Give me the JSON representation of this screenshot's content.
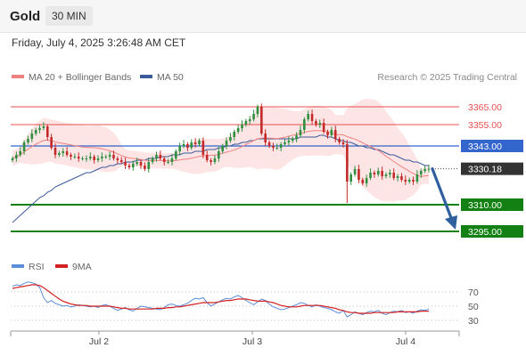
{
  "header": {
    "instrument": "Gold",
    "timeframe": "30 MIN",
    "datetime": "Friday, July 4, 2025 3:26:48 AM CET"
  },
  "colors": {
    "ma20": "#f08080",
    "bollinger_fill": "#fde0e0",
    "ma50": "#3a5a9c",
    "resistance": "#e85050",
    "pivot": "#3366cc",
    "support": "#128012",
    "candle_up": "#2f8f3f",
    "candle_down": "#c42a2a",
    "arrow": "#2f5f9f",
    "rsi": "#5b8fd9",
    "rsi_ma": "#d42020"
  },
  "chart_data": [
    {
      "type": "candlestick",
      "legend": [
        {
          "label": "MA 20 + Bollinger Bands",
          "icon": "legend-line-icon"
        },
        {
          "label": "MA 50",
          "icon": "legend-line-icon"
        }
      ],
      "credit": "Research © 2025 Trading Central",
      "x_ticks": [
        "Jul 2",
        "Jul 3",
        "Jul 4"
      ],
      "y_range": [
        3285,
        3375
      ],
      "levels": [
        {
          "label": "3365.00",
          "value": 3365,
          "kind": "resistance"
        },
        {
          "label": "3355.00",
          "value": 3355,
          "kind": "resistance"
        },
        {
          "label": "3343.00",
          "value": 3343,
          "kind": "pivot"
        },
        {
          "label": "3330.18",
          "value": 3330.18,
          "kind": "last"
        },
        {
          "label": "3310.00",
          "value": 3310,
          "kind": "support"
        },
        {
          "label": "3295.00",
          "value": 3295,
          "kind": "support"
        }
      ],
      "close_series": [
        3336,
        3338,
        3340,
        3345,
        3347,
        3350,
        3352,
        3353,
        3354,
        3348,
        3342,
        3338,
        3339,
        3340,
        3338,
        3337,
        3337,
        3336,
        3336,
        3336,
        3337,
        3335,
        3336,
        3337,
        3337,
        3338,
        3336,
        3335,
        3334,
        3332,
        3331,
        3333,
        3334,
        3332,
        3330,
        3334,
        3336,
        3338,
        3336,
        3334,
        3334,
        3336,
        3340,
        3343,
        3344,
        3342,
        3345,
        3344,
        3346,
        3338,
        3335,
        3334,
        3336,
        3340,
        3343,
        3346,
        3348,
        3351,
        3353,
        3355,
        3357,
        3358,
        3361,
        3365,
        3350,
        3345,
        3343,
        3342,
        3342,
        3344,
        3345,
        3346,
        3347,
        3349,
        3352,
        3358,
        3361,
        3357,
        3355,
        3356,
        3351,
        3349,
        3352,
        3347,
        3345,
        3344,
        3323,
        3327,
        3330,
        3324,
        3322,
        3325,
        3328,
        3327,
        3329,
        3326,
        3327,
        3328,
        3325,
        3326,
        3324,
        3323,
        3324,
        3323,
        3327,
        3329,
        3330,
        3330.18
      ],
      "ma50_series": [
        3300,
        3302,
        3304,
        3306,
        3308,
        3310,
        3312,
        3314,
        3315,
        3317,
        3318,
        3320,
        3321,
        3322,
        3323,
        3324,
        3325,
        3326,
        3327,
        3328,
        3328,
        3329,
        3330,
        3331,
        3331,
        3332,
        3332,
        3333,
        3333,
        3334,
        3334,
        3334,
        3335,
        3335,
        3335,
        3336,
        3336,
        3336,
        3337,
        3337,
        3337,
        3338,
        3338,
        3338,
        3339,
        3339,
        3339,
        3340,
        3340,
        3340,
        3341,
        3341,
        3341,
        3342,
        3342,
        3343,
        3343,
        3344,
        3344,
        3345,
        3345,
        3346,
        3346,
        3347,
        3347,
        3347,
        3347,
        3347,
        3347,
        3347,
        3347,
        3347,
        3347,
        3347,
        3348,
        3348,
        3348,
        3348,
        3348,
        3349,
        3349,
        3348,
        3348,
        3347,
        3346,
        3346,
        3345,
        3345,
        3344,
        3343,
        3343,
        3342,
        3342,
        3341,
        3341,
        3340,
        3339,
        3338,
        3338,
        3337,
        3336,
        3335,
        3335,
        3334,
        3334,
        3333,
        3332,
        3332
      ],
      "forecast": {
        "from": 3330.18,
        "to": 3295.0
      },
      "rsi": {
        "legend": [
          {
            "label": "RSI",
            "icon": "legend-line-icon"
          },
          {
            "label": "9MA",
            "icon": "legend-line-icon"
          }
        ],
        "y_ticks": [
          {
            "label": "70",
            "value": 70
          },
          {
            "label": "50",
            "value": 50
          },
          {
            "label": "30",
            "value": 30
          }
        ],
        "y_range": [
          20,
          90
        ],
        "rsi_series": [
          78,
          80,
          79,
          82,
          84,
          83,
          81,
          76,
          62,
          55,
          58,
          54,
          52,
          50,
          51,
          49,
          50,
          52,
          51,
          50,
          49,
          50,
          48,
          51,
          52,
          50,
          47,
          44,
          46,
          48,
          45,
          43,
          47,
          50,
          49,
          48,
          47,
          46,
          45,
          48,
          52,
          53,
          51,
          50,
          52,
          54,
          58,
          61,
          60,
          62,
          55,
          50,
          53,
          56,
          59,
          61,
          60,
          63,
          65,
          62,
          58,
          55,
          52,
          56,
          60,
          58,
          53,
          49,
          47,
          45,
          46,
          48,
          50,
          52,
          55,
          54,
          51,
          49,
          52,
          50,
          48,
          47,
          45,
          42,
          40,
          44,
          35,
          38,
          42,
          40,
          38,
          41,
          43,
          42,
          44,
          40,
          38,
          41,
          43,
          42,
          44,
          41,
          42,
          40,
          43,
          45,
          44,
          46
        ],
        "ma_series": [
          75,
          76,
          77,
          78,
          79,
          80,
          80,
          79,
          76,
          72,
          68,
          64,
          60,
          57,
          55,
          53,
          52,
          51,
          51,
          51,
          50,
          50,
          50,
          50,
          50,
          50,
          49,
          48,
          47,
          47,
          46,
          46,
          46,
          46,
          46,
          46,
          46,
          47,
          47,
          47,
          48,
          48,
          49,
          49,
          50,
          51,
          52,
          53,
          54,
          55,
          55,
          55,
          55,
          56,
          57,
          58,
          58,
          59,
          60,
          60,
          60,
          59,
          58,
          57,
          57,
          57,
          56,
          55,
          53,
          51,
          50,
          49,
          49,
          49,
          50,
          51,
          51,
          51,
          51,
          51,
          50,
          49,
          48,
          47,
          45,
          44,
          42,
          41,
          41,
          40,
          40,
          40,
          40,
          41,
          41,
          41,
          41,
          41,
          41,
          42,
          42,
          42,
          42,
          42,
          42,
          43,
          43,
          43
        ]
      }
    }
  ]
}
